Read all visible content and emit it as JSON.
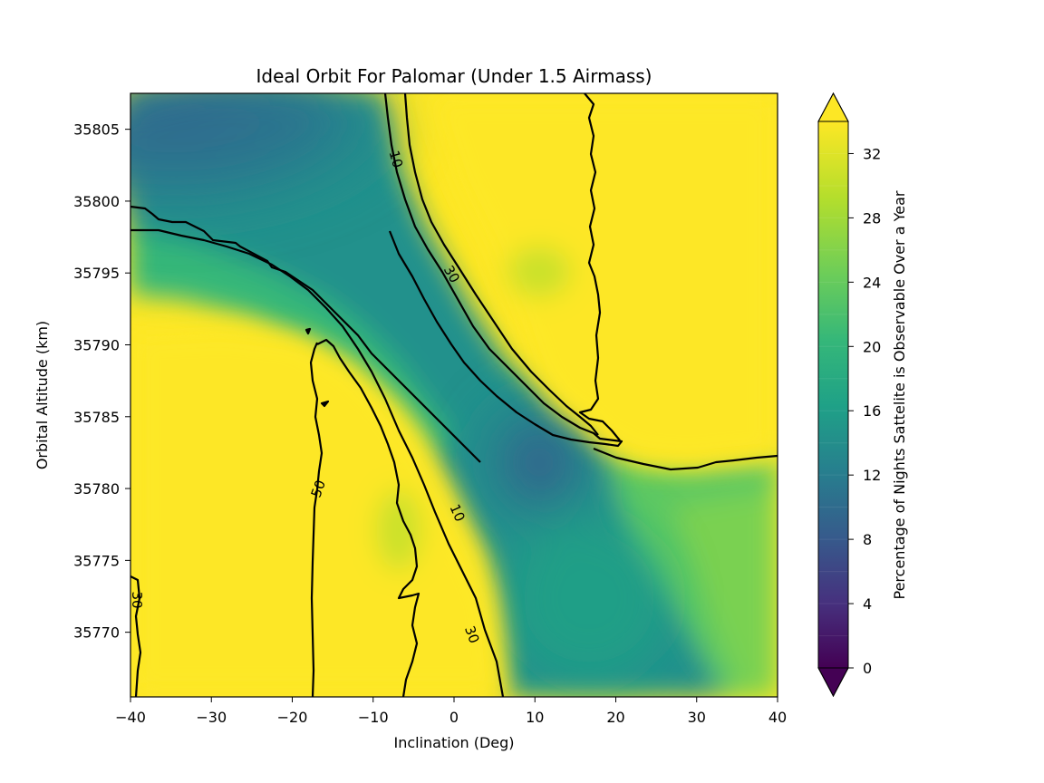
{
  "chart_data": {
    "type": "contour",
    "title": "Ideal Orbit For Palomar (Under 1.5 Airmass)",
    "xlabel": "Inclination (Deg)",
    "ylabel": "Orbital Altitude (km)",
    "xlim": [
      -40,
      40
    ],
    "ylim": [
      35765.5,
      35807.5
    ],
    "xticks": [
      -40,
      -30,
      -20,
      -10,
      0,
      10,
      20,
      30,
      40
    ],
    "yticks": [
      35770,
      35775,
      35780,
      35785,
      35790,
      35795,
      35800,
      35805
    ],
    "colorbar": {
      "label": "Percentage of Nights Sattelite is Observable Over a Year",
      "ticks": [
        0,
        4,
        8,
        12,
        16,
        20,
        24,
        28,
        32
      ],
      "range": [
        0,
        34
      ],
      "extend": "both",
      "colormap": "viridis"
    },
    "contour_levels": [
      10,
      30,
      50
    ],
    "contour_labels": [
      "10",
      "30",
      "30",
      "30",
      "50",
      "10",
      "30"
    ],
    "colors": {
      "low": "#440154",
      "mid": "#21918c",
      "high": "#fde725",
      "contour": "#000000"
    }
  }
}
